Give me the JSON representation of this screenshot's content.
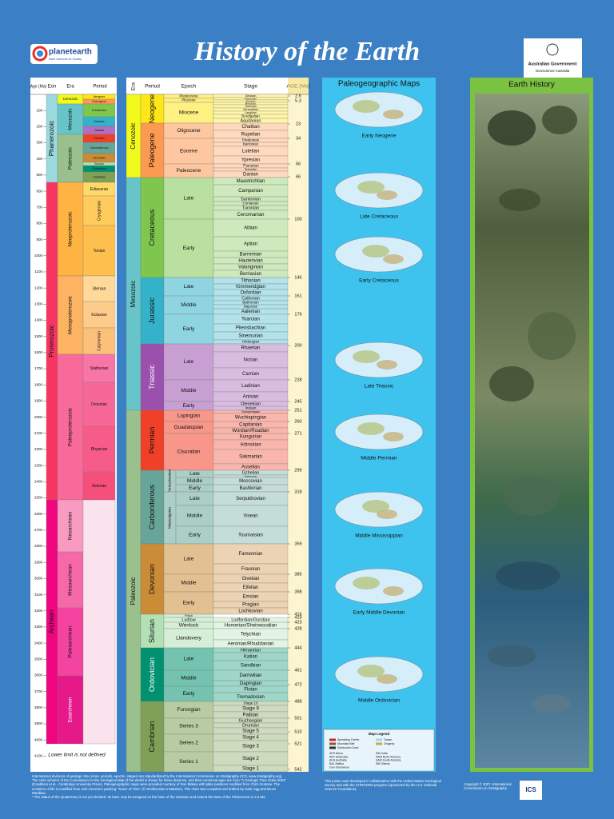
{
  "header": {
    "title": "History of the Earth",
    "logo_left": "planetearth",
    "logo_left_sub": "Earth Sciences for Society",
    "logo_right": "Australian Government",
    "logo_right_sub": "Geoscience Australia"
  },
  "precambrian": {
    "headers": [
      "Age (Ma)",
      "Eon",
      "Era",
      "Period"
    ],
    "ages": [
      100,
      200,
      300,
      400,
      500,
      600,
      700,
      800,
      900,
      1000,
      1100,
      1200,
      1300,
      1400,
      1500,
      1600,
      1700,
      1800,
      1900,
      2000,
      2100,
      2200,
      2300,
      2400,
      2500,
      2600,
      2700,
      2800,
      2900,
      3000,
      3100,
      3200,
      3300,
      3400,
      3500,
      3600,
      3700,
      3800,
      3900,
      4000,
      4100
    ],
    "eons": [
      {
        "name": "Phanerozoic",
        "color": "#9ad9dd"
      },
      {
        "name": "Proterozoic",
        "color": "#f73563"
      },
      {
        "name": "Archean",
        "color": "#f0047f"
      }
    ],
    "eras": [
      {
        "name": "Cenozoic",
        "color": "#f2f91d"
      },
      {
        "name": "Mesozoic",
        "color": "#67c5ca"
      },
      {
        "name": "Paleozoic",
        "color": "#99c08d"
      },
      {
        "name": "Neoproterozoic",
        "color": "#feb342"
      },
      {
        "name": "Mesoproterozoic",
        "color": "#fdb462"
      },
      {
        "name": "Paleoproterozoic",
        "color": "#f76a9a"
      },
      {
        "name": "Neoarchean",
        "color": "#f99bc1"
      },
      {
        "name": "Mesoarchean",
        "color": "#f768a9"
      },
      {
        "name": "Paleoarchean",
        "color": "#f4449f"
      },
      {
        "name": "Eoarchean",
        "color": "#e6198a"
      }
    ],
    "periods": [
      {
        "name": "Neogene",
        "color": "#ffe619"
      },
      {
        "name": "Paleogene",
        "color": "#fd9a52"
      },
      {
        "name": "Cretaceous",
        "color": "#7fc64e"
      },
      {
        "name": "Jurassic",
        "color": "#34b2c9"
      },
      {
        "name": "Triassic",
        "color": "#b26ec0"
      },
      {
        "name": "Permian",
        "color": "#f04028"
      },
      {
        "name": "Carboniferous",
        "color": "#67a599"
      },
      {
        "name": "Devonian",
        "color": "#cb8c37"
      },
      {
        "name": "Silurian",
        "color": "#b3e1b6"
      },
      {
        "name": "Ordovician",
        "color": "#009270"
      },
      {
        "name": "Cambrian",
        "color": "#7fa056"
      },
      {
        "name": "Ediacaran",
        "color": "#fed96a"
      },
      {
        "name": "Cryogenian",
        "color": "#fecc5c"
      },
      {
        "name": "Tonian",
        "color": "#febf4e"
      },
      {
        "name": "Stenian",
        "color": "#fed99a"
      },
      {
        "name": "Ectasian",
        "color": "#fdcc8a"
      },
      {
        "name": "Calymmian",
        "color": "#fdc07a"
      },
      {
        "name": "Statherian",
        "color": "#f875a7"
      },
      {
        "name": "Orosirian",
        "color": "#f76898"
      },
      {
        "name": "Rhyacian",
        "color": "#f75b89"
      },
      {
        "name": "Siderian",
        "color": "#f74f7c"
      }
    ],
    "note": "Lower limit is not defined"
  },
  "phanerozoic": {
    "headers": [
      "Era",
      "Period",
      "Epoch",
      "Stage",
      "AGE (Ma)"
    ],
    "eras": [
      {
        "name": "Cenozoic",
        "color": "#f2f91d"
      },
      {
        "name": "Mesozoic",
        "color": "#67c5ca"
      },
      {
        "name": "Paleozoic",
        "color": "#99c08d"
      }
    ],
    "periods": [
      {
        "name": "Neogene",
        "color": "#ffe619"
      },
      {
        "name": "Paleogene",
        "color": "#fd9a52"
      },
      {
        "name": "Cretaceous",
        "color": "#7fc64e"
      },
      {
        "name": "Jurassic",
        "color": "#34b2c9"
      },
      {
        "name": "Triassic",
        "color": "#9b50ad"
      },
      {
        "name": "Permian",
        "color": "#f04028"
      },
      {
        "name": "Carboniferous",
        "color": "#67a599"
      },
      {
        "name": "Devonian",
        "color": "#cb8c37"
      },
      {
        "name": "Silurian",
        "color": "#b3e1b6"
      },
      {
        "name": "Ordovician",
        "color": "#009270"
      },
      {
        "name": "Cambrian",
        "color": "#7fa056"
      }
    ],
    "epochs": [
      "Pleistocene",
      "Pliocene",
      "Miocene",
      "Oligocene",
      "Eocene",
      "Paleocene",
      "Late",
      "Early",
      "Late",
      "Middle",
      "Early",
      "Late",
      "Middle",
      "Early",
      "Lopingian",
      "Guadalupian",
      "Cisuralian",
      "Pennsylvanian",
      "Late",
      "Middle",
      "Early",
      "Mississippian",
      "Late",
      "Middle",
      "Early",
      "Late",
      "Middle",
      "Early",
      "Pridoli",
      "Ludlow",
      "Wenlock",
      "Llandovery",
      "Late",
      "Middle",
      "Early",
      "Furongian",
      "Series 3",
      "Series 2",
      "Series 1"
    ],
    "stages": [
      "Gelasian",
      "Piacenzian",
      "Zanclean",
      "Messinian",
      "Tortonian",
      "Serravallian",
      "Langhian",
      "Burdigalian",
      "Aquitanian",
      "Chattian",
      "Rupelian",
      "Priabonian",
      "Bartonian",
      "Lutetian",
      "Ypresian",
      "Thanetian",
      "Selandian",
      "Danian",
      "Maastrichtian",
      "Campanian",
      "Santonian",
      "Coniacian",
      "Turonian",
      "Cenomanian",
      "Albian",
      "Aptian",
      "Barremian",
      "Hauterivian",
      "Valanginian",
      "Berriasian",
      "Tithonian",
      "Kimmeridgian",
      "Oxfordian",
      "Callovian",
      "Bathonian",
      "Bajocian",
      "Aalenian",
      "Toarcian",
      "Pliensbachian",
      "Sinemurian",
      "Hettangian",
      "Rhaetian",
      "Norian",
      "Carnian",
      "Ladinian",
      "Anisian",
      "Olenekian",
      "Induan",
      "Changhsingian",
      "Wuchiapingian",
      "Capitanian",
      "Wordian/Roadian",
      "Kungurian",
      "Artinskian",
      "Sakmarian",
      "Asselian",
      "Gzhelian",
      "Kasimovian",
      "Moscovian",
      "Bashkirian",
      "Serpukhovian",
      "Visean",
      "Tournaisian",
      "Famennian",
      "Frasnian",
      "Givetian",
      "Eifelian",
      "Emsian",
      "Pragian",
      "Lochkovian",
      "Ludfordian/Gorstian",
      "Homerian/Sheinwoodian",
      "Telychian",
      "Aeronian/Rhuddanian",
      "Hirnantian",
      "Katian",
      "Sandbian",
      "Darriwilian",
      "Dapingian",
      "Floian",
      "Tremadocian",
      "Stage 10",
      "Stage 9",
      "Paibian",
      "Guzhangian",
      "Drumian",
      "Stage 5",
      "Stage 4",
      "Stage 3",
      "Stage 2",
      "Stage 1"
    ],
    "ages": [
      2.6,
      5.3,
      23,
      34,
      56,
      66,
      100,
      146,
      161,
      176,
      200,
      228,
      245,
      251,
      260,
      271,
      299,
      318,
      359,
      385,
      398,
      416,
      419,
      423,
      428,
      444,
      461,
      472,
      488,
      501,
      510,
      521,
      542
    ]
  },
  "maps": {
    "title": "Paleogeographic Maps",
    "captions": [
      "Early Neogene",
      "Late Cretaceous",
      "Early Cretaceous",
      "Late Triassic",
      "Middle Permian",
      "Middle Mississippian",
      "Early Middle Devonian",
      "Middle Ordovician"
    ],
    "legend": {
      "title": "Map Legend",
      "items": [
        "Spreading Center",
        "Mountain Belt",
        "Subduction Zone",
        "Ocean",
        "Orogeny"
      ],
      "abbreviations": [
        "AFR Africa",
        "ANT Antarctica",
        "AUS Australia",
        "BAL Baltica",
        "Gon Gondwana",
        "IND India",
        "NAM North America",
        "SAM South America",
        "SIB Siberia"
      ]
    }
  },
  "earth_history": {
    "title": "Earth History"
  },
  "footer": {
    "note": "International divisions of geologic time (eras, periods, epochs, stages) are standardised by the International Commission on Stratigraphy (ICS, www.stratigraphy.org). The color scheme of the Commission for the Geological Map of the World is shown for these divisions, and their numerical ages are from \"A Geologic Time Scale 2004\" (Gradstein et al., Cambridge University Press). Paleogeographic maps were provided courtesy of Ron Blakey with plate positions modified from Chris Scotese. The evolution of life is modified from John Gurche's painting \"Tower of Time\" (© Smithsonian Institution). This chart was compiled and drafted by Gabi Ogg and Bruce Wardlaw.",
    "quaternary": "* The status of the Quaternary is not yet decided. Its base may be assigned as the base of the Gelasian and extend the base of the Pleistocene to 2.6 Ma.",
    "credit": "This poster was developed in collaboration with the United States Geological Survey and with the CHRONOS program (sponsored by the U.S. National Science Foundation).",
    "copyright": "Copyright © 2007, International Commission on Stratigraphy",
    "ics": "ICS"
  }
}
